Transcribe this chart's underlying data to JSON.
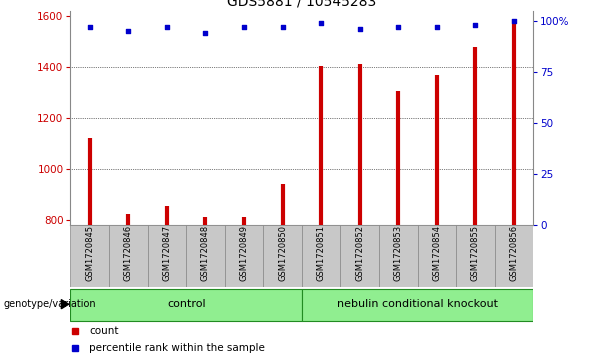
{
  "title": "GDS5881 / 10545283",
  "samples": [
    "GSM1720845",
    "GSM1720846",
    "GSM1720847",
    "GSM1720848",
    "GSM1720849",
    "GSM1720850",
    "GSM1720851",
    "GSM1720852",
    "GSM1720853",
    "GSM1720854",
    "GSM1720855",
    "GSM1720856"
  ],
  "counts": [
    1120,
    825,
    855,
    810,
    812,
    940,
    1405,
    1410,
    1305,
    1370,
    1480,
    1590
  ],
  "percentile_ranks": [
    97,
    95,
    97,
    94,
    97,
    97,
    99,
    96,
    97,
    97,
    98,
    100
  ],
  "ylim_left": [
    780,
    1620
  ],
  "ylim_right": [
    0,
    105
  ],
  "yticks_left": [
    800,
    1000,
    1200,
    1400,
    1600
  ],
  "yticks_right": [
    0,
    25,
    50,
    75,
    100
  ],
  "bar_color": "#CC0000",
  "dot_color": "#0000CC",
  "tick_area_color": "#C8C8C8",
  "legend_count_label": "count",
  "legend_percentile_label": "percentile rank within the sample",
  "group_label": "genotype/variation",
  "groups": [
    {
      "label": "control",
      "start": 0,
      "end": 5
    },
    {
      "label": "nebulin conditional knockout",
      "start": 6,
      "end": 11
    }
  ],
  "green_color": "#90EE90",
  "green_edge": "#228B22",
  "title_fontsize": 10,
  "tick_fontsize": 7.5,
  "sample_fontsize": 6,
  "group_fontsize": 8
}
